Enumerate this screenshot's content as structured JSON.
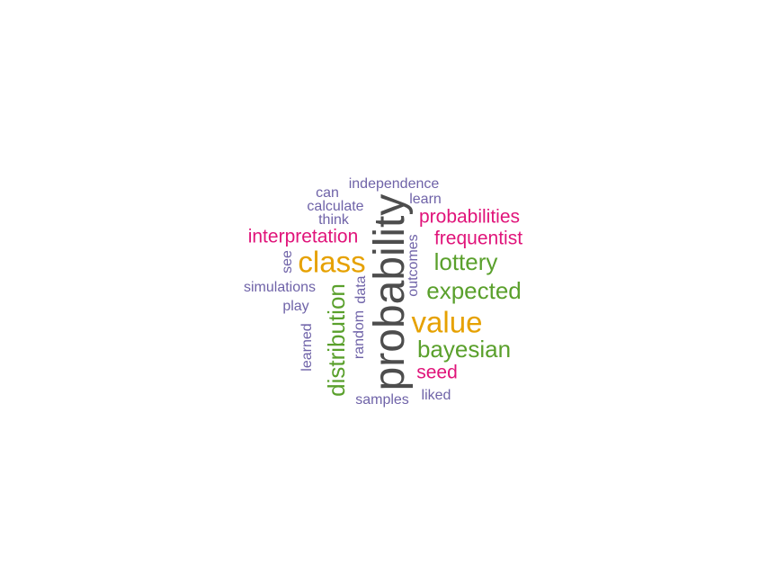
{
  "words": [
    {
      "text": "probability",
      "color": "#4d4d4d",
      "weight": "largest"
    },
    {
      "text": "class",
      "color": "#e6a100",
      "weight": "large"
    },
    {
      "text": "value",
      "color": "#e6a100",
      "weight": "large"
    },
    {
      "text": "distribution",
      "color": "#5aa02c",
      "weight": "medium-large"
    },
    {
      "text": "lottery",
      "color": "#5aa02c",
      "weight": "medium"
    },
    {
      "text": "expected",
      "color": "#5aa02c",
      "weight": "medium"
    },
    {
      "text": "bayesian",
      "color": "#5aa02c",
      "weight": "medium"
    },
    {
      "text": "interpretation",
      "color": "#e0147a",
      "weight": "medium-small"
    },
    {
      "text": "probabilities",
      "color": "#e0147a",
      "weight": "medium-small"
    },
    {
      "text": "frequentist",
      "color": "#e0147a",
      "weight": "medium-small"
    },
    {
      "text": "seed",
      "color": "#e0147a",
      "weight": "medium-small"
    },
    {
      "text": "independence",
      "color": "#6f63a8",
      "weight": "small"
    },
    {
      "text": "can",
      "color": "#6f63a8",
      "weight": "small"
    },
    {
      "text": "learn",
      "color": "#6f63a8",
      "weight": "small"
    },
    {
      "text": "calculate",
      "color": "#6f63a8",
      "weight": "small"
    },
    {
      "text": "think",
      "color": "#6f63a8",
      "weight": "small"
    },
    {
      "text": "see",
      "color": "#6f63a8",
      "weight": "small"
    },
    {
      "text": "outcomes",
      "color": "#6f63a8",
      "weight": "small"
    },
    {
      "text": "simulations",
      "color": "#6f63a8",
      "weight": "small"
    },
    {
      "text": "data",
      "color": "#6f63a8",
      "weight": "small"
    },
    {
      "text": "play",
      "color": "#6f63a8",
      "weight": "small"
    },
    {
      "text": "random",
      "color": "#6f63a8",
      "weight": "small"
    },
    {
      "text": "learned",
      "color": "#6f63a8",
      "weight": "small"
    },
    {
      "text": "samples",
      "color": "#6f63a8",
      "weight": "small"
    },
    {
      "text": "liked",
      "color": "#6f63a8",
      "weight": "small"
    }
  ]
}
